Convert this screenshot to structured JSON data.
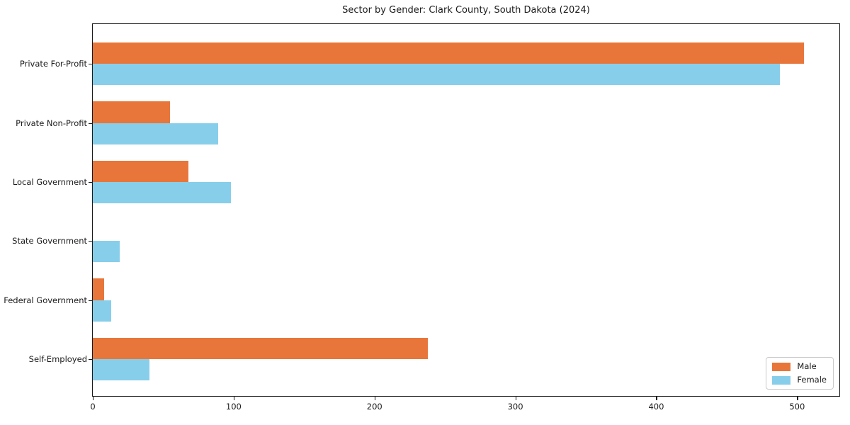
{
  "chart_data": {
    "type": "bar",
    "orientation": "horizontal",
    "title": "Sector by Gender: Clark County, South Dakota (2024)",
    "categories": [
      "Private For-Profit",
      "Private Non-Profit",
      "Local Government",
      "State Government",
      "Federal Government",
      "Self-Employed"
    ],
    "series": [
      {
        "name": "Male",
        "color": "#e8763a",
        "values": [
          505,
          55,
          68,
          0,
          8,
          238
        ]
      },
      {
        "name": "Female",
        "color": "#87ceeb",
        "values": [
          488,
          89,
          98,
          19,
          13,
          40
        ]
      }
    ],
    "xlabel": "",
    "ylabel": "",
    "xlim": [
      0,
      530
    ],
    "x_ticks": [
      0,
      100,
      200,
      300,
      400,
      500
    ],
    "grid": false,
    "legend_position": "lower right",
    "colors": {
      "male": "#e8763a",
      "female": "#87ceeb",
      "axis": "#1a1a1a",
      "background": "#ffffff",
      "legend_border": "#c9c9c9"
    }
  }
}
